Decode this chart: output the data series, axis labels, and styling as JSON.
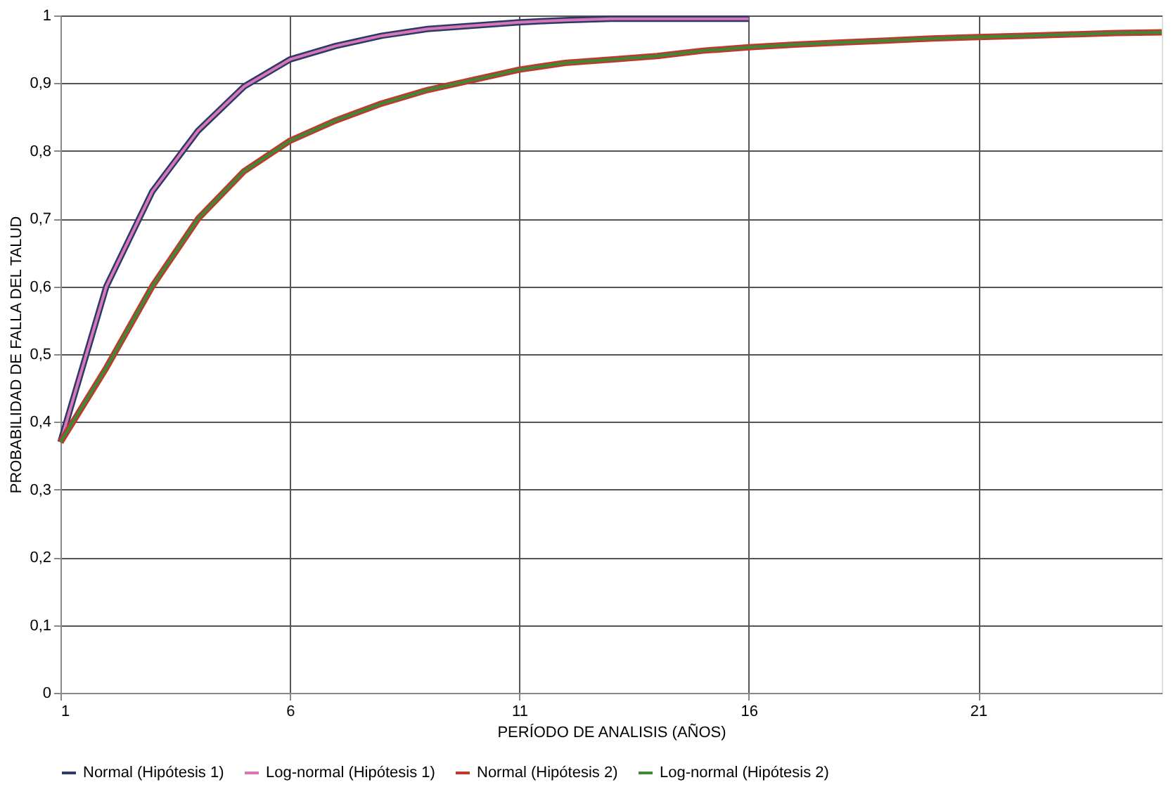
{
  "chart_data": {
    "type": "line",
    "xlabel": "PERÍODO DE ANALISIS (AÑOS)",
    "ylabel": "PROBABILIDAD DE FALLA DEL TALUD",
    "x": [
      1,
      2,
      3,
      4,
      5,
      6,
      7,
      8,
      9,
      10,
      11,
      12,
      13,
      14,
      15,
      16,
      17,
      18,
      19,
      20,
      21,
      22,
      23,
      24,
      25
    ],
    "series": [
      {
        "name": "Normal (Hipótesis 1)",
        "color": "#2b3a6b",
        "x": [
          1,
          2,
          3,
          4,
          5,
          6,
          7,
          8,
          9,
          10,
          11,
          12,
          13,
          14,
          15,
          16
        ],
        "values": [
          0.37,
          0.6,
          0.74,
          0.83,
          0.895,
          0.935,
          0.955,
          0.97,
          0.98,
          0.985,
          0.99,
          0.993,
          0.995,
          0.995,
          0.995,
          0.995
        ]
      },
      {
        "name": "Log-normal (Hipótesis 1)",
        "color": "#d977b5",
        "x": [
          1,
          2,
          3,
          4,
          5,
          6,
          7,
          8,
          9,
          10,
          11,
          12,
          13,
          14,
          15,
          16
        ],
        "values": [
          0.37,
          0.6,
          0.74,
          0.83,
          0.895,
          0.935,
          0.955,
          0.97,
          0.98,
          0.985,
          0.99,
          0.993,
          0.995,
          0.995,
          0.995,
          0.995
        ]
      },
      {
        "name": "Normal (Hipótesis 2)",
        "color": "#c0392b",
        "values": [
          0.37,
          0.48,
          0.6,
          0.7,
          0.77,
          0.815,
          0.845,
          0.87,
          0.89,
          0.905,
          0.92,
          0.93,
          0.935,
          0.94,
          0.948,
          0.953,
          0.957,
          0.96,
          0.963,
          0.966,
          0.968,
          0.97,
          0.972,
          0.974,
          0.975
        ]
      },
      {
        "name": "Log-normal (Hipótesis 2)",
        "color": "#3a8a3a",
        "values": [
          0.37,
          0.48,
          0.6,
          0.7,
          0.77,
          0.815,
          0.845,
          0.87,
          0.89,
          0.905,
          0.92,
          0.93,
          0.935,
          0.94,
          0.948,
          0.953,
          0.957,
          0.96,
          0.963,
          0.966,
          0.968,
          0.97,
          0.972,
          0.974,
          0.975
        ]
      }
    ],
    "xlim": [
      1,
      25
    ],
    "xticks": [
      1,
      6,
      11,
      16,
      21
    ],
    "ylim": [
      0,
      1
    ],
    "yticks": [
      0,
      {
        "value": 0.1,
        "label": "0,1"
      },
      {
        "value": 0.2,
        "label": "0,2"
      },
      {
        "value": 0.3,
        "label": "0,3"
      },
      {
        "value": 0.4,
        "label": "0,4"
      },
      {
        "value": 0.5,
        "label": "0,5"
      },
      {
        "value": 0.6,
        "label": "0,6"
      },
      {
        "value": 0.7,
        "label": "0,7"
      },
      {
        "value": 0.8,
        "label": "0,8"
      },
      {
        "value": 0.9,
        "label": "0,9"
      },
      1
    ],
    "grid": true,
    "legend": "bottom",
    "marker": "none",
    "line_style": "solid"
  }
}
